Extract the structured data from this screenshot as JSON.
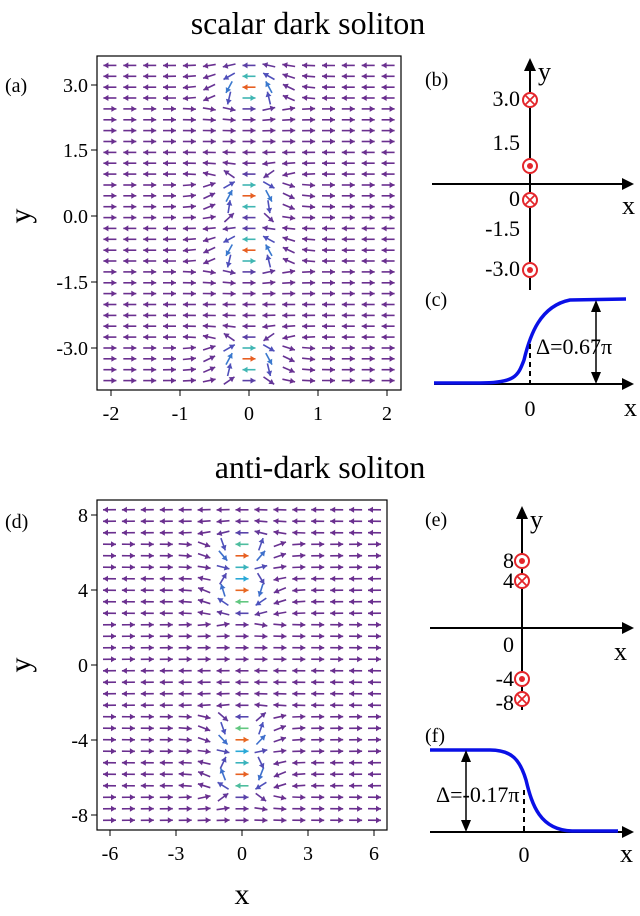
{
  "top": {
    "title": "scalar dark soliton",
    "panel_a": {
      "label": "(a)",
      "ylabel": "y",
      "xlim": [
        -2.2,
        2.2
      ],
      "ylim": [
        -3.6,
        3.6
      ],
      "xticks": [
        "-2",
        "-1",
        "0",
        "1",
        "2"
      ],
      "yticks": [
        "3.0",
        "1.5",
        "0.0",
        "-1.5",
        "-3.0"
      ],
      "vortex_rows": [
        3.0,
        0.6,
        -0.6,
        -3.0
      ],
      "vortex_signs": [
        1,
        -1,
        1,
        -1
      ]
    },
    "panel_b": {
      "label": "(b)",
      "xlabel": "x",
      "ylabel": "y",
      "ticks": [
        "3.0",
        "1.5",
        "0",
        "-1.5",
        "-3.0"
      ],
      "markers": [
        {
          "y": 3.0,
          "kind": "cross"
        },
        {
          "y": 0.6,
          "kind": "dot"
        },
        {
          "y": -0.6,
          "kind": "cross"
        },
        {
          "y": -3.0,
          "kind": "dot"
        }
      ]
    },
    "panel_c": {
      "label": "(c)",
      "xlabel": "x",
      "xtick": "0",
      "delta_label": "Δ=0.67π",
      "delta": 0.67
    }
  },
  "bottom": {
    "title": "anti-dark soliton",
    "panel_d": {
      "label": "(d)",
      "xlabel": "x",
      "ylabel": "y",
      "xlim": [
        -6.6,
        6.6
      ],
      "ylim": [
        -8.8,
        8.8
      ],
      "xticks": [
        "-6",
        "-3",
        "0",
        "3",
        "6"
      ],
      "yticks": [
        "8",
        "4",
        "0",
        "-4",
        "-8"
      ],
      "vortex_rows": [
        6,
        4,
        -4,
        -6
      ],
      "vortex_signs": [
        1,
        -1,
        1,
        -1
      ]
    },
    "panel_e": {
      "label": "(e)",
      "xlabel": "x",
      "ylabel": "y",
      "ticks": [
        "8",
        "4",
        "0",
        "-4",
        "-8"
      ],
      "markers": [
        {
          "y": 6,
          "kind": "dot"
        },
        {
          "y": 4,
          "kind": "cross"
        },
        {
          "y": -4,
          "kind": "dot"
        },
        {
          "y": -6,
          "kind": "cross"
        }
      ]
    },
    "panel_f": {
      "label": "(f)",
      "xlabel": "x",
      "xtick": "0",
      "delta_label": "Δ=-0.17π",
      "delta": -0.17
    }
  },
  "colors": {
    "arrow_low": "#6a2f8f",
    "curve": "#0a10e6",
    "marker": "#e3262b"
  }
}
